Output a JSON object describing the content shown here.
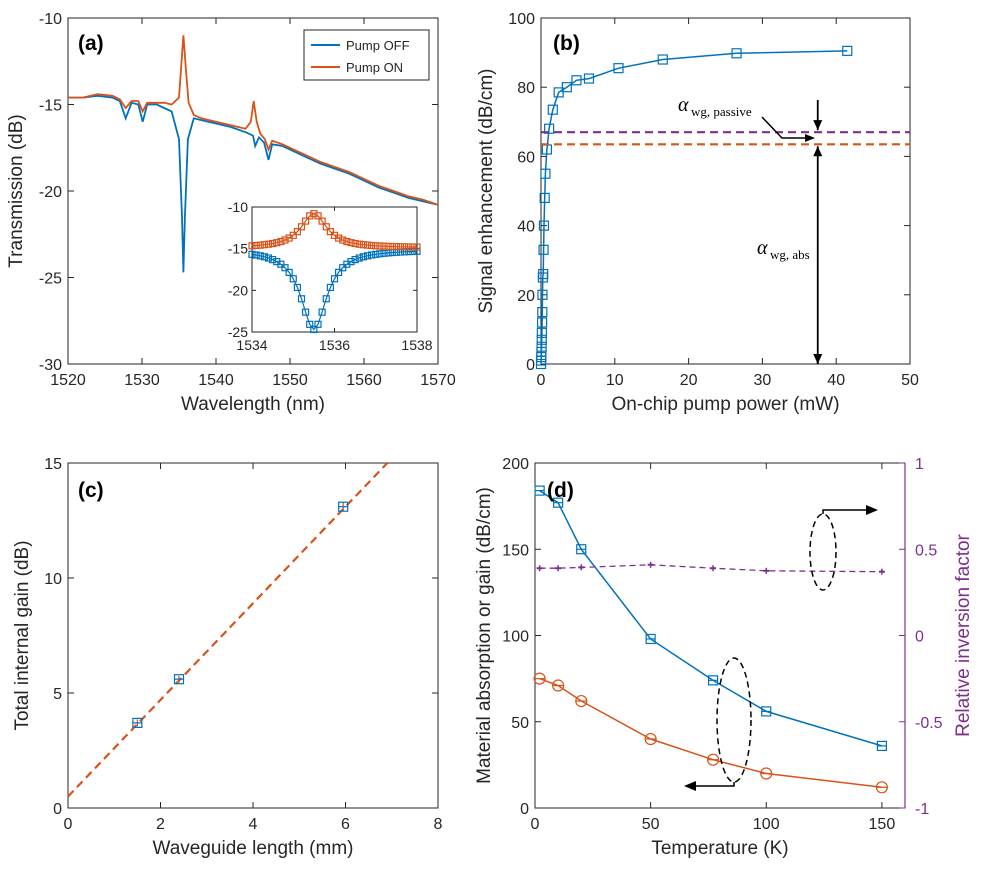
{
  "colors": {
    "blue": "#0072BD",
    "orange": "#D95319",
    "purple": "#7E2F8E",
    "black": "#000000"
  },
  "chart_data": [
    {
      "id": "a",
      "panel_label": "(a)",
      "type": "line",
      "xlabel": "Wavelength (nm)",
      "ylabel": "Transmission (dB)",
      "xlim": [
        1520,
        1570
      ],
      "ylim": [
        -30,
        -10
      ],
      "xticks": [
        1520,
        1530,
        1540,
        1550,
        1560,
        1570
      ],
      "yticks": [
        -30,
        -25,
        -20,
        -15,
        -10
      ],
      "legend": {
        "position": "top-right",
        "entries": [
          "Pump OFF",
          "Pump ON"
        ]
      },
      "series": [
        {
          "name": "Pump OFF",
          "color": "blue",
          "points": [
            [
              1520,
              -14.6
            ],
            [
              1522,
              -14.6
            ],
            [
              1524,
              -14.5
            ],
            [
              1526,
              -14.6
            ],
            [
              1527,
              -14.8
            ],
            [
              1527.8,
              -15.8
            ],
            [
              1528.6,
              -14.9
            ],
            [
              1529.5,
              -15
            ],
            [
              1530.1,
              -16.0
            ],
            [
              1530.7,
              -15.0
            ],
            [
              1532,
              -15.0
            ],
            [
              1533,
              -15.2
            ],
            [
              1534,
              -15.4
            ],
            [
              1535,
              -17.0
            ],
            [
              1535.4,
              -21.5
            ],
            [
              1535.6,
              -24.7
            ],
            [
              1535.8,
              -21.5
            ],
            [
              1536.2,
              -17.0
            ],
            [
              1537,
              -15.8
            ],
            [
              1538,
              -15.9
            ],
            [
              1540,
              -16.1
            ],
            [
              1542,
              -16.3
            ],
            [
              1544,
              -16.6
            ],
            [
              1545,
              -16.8
            ],
            [
              1545.3,
              -17.4
            ],
            [
              1545.8,
              -16.9
            ],
            [
              1546.5,
              -17.2
            ],
            [
              1547.1,
              -18.2
            ],
            [
              1547.6,
              -17.3
            ],
            [
              1549,
              -17.4
            ],
            [
              1550,
              -17.6
            ],
            [
              1552,
              -18.0
            ],
            [
              1554,
              -18.4
            ],
            [
              1556,
              -18.7
            ],
            [
              1558,
              -19.0
            ],
            [
              1560,
              -19.4
            ],
            [
              1562,
              -19.8
            ],
            [
              1564,
              -20.1
            ],
            [
              1566,
              -20.4
            ],
            [
              1568,
              -20.6
            ],
            [
              1570,
              -20.8
            ]
          ]
        },
        {
          "name": "Pump ON",
          "color": "orange",
          "points": [
            [
              1520,
              -14.6
            ],
            [
              1522,
              -14.6
            ],
            [
              1524,
              -14.4
            ],
            [
              1526,
              -14.5
            ],
            [
              1527,
              -14.7
            ],
            [
              1527.8,
              -15.2
            ],
            [
              1528.6,
              -14.8
            ],
            [
              1529.5,
              -14.8
            ],
            [
              1530.1,
              -15.4
            ],
            [
              1530.7,
              -14.9
            ],
            [
              1532,
              -14.9
            ],
            [
              1533,
              -14.9
            ],
            [
              1534,
              -15.0
            ],
            [
              1535,
              -14.6
            ],
            [
              1535.3,
              -12.8
            ],
            [
              1535.6,
              -11.0
            ],
            [
              1535.9,
              -12.8
            ],
            [
              1536.3,
              -14.9
            ],
            [
              1537,
              -15.6
            ],
            [
              1538,
              -15.8
            ],
            [
              1540,
              -16.0
            ],
            [
              1542,
              -16.2
            ],
            [
              1544,
              -16.4
            ],
            [
              1544.7,
              -16.0
            ],
            [
              1545.1,
              -14.8
            ],
            [
              1545.5,
              -16.0
            ],
            [
              1546,
              -16.7
            ],
            [
              1546.6,
              -17.0
            ],
            [
              1547.1,
              -17.6
            ],
            [
              1547.6,
              -17.1
            ],
            [
              1549,
              -17.3
            ],
            [
              1550,
              -17.5
            ],
            [
              1552,
              -17.9
            ],
            [
              1554,
              -18.3
            ],
            [
              1556,
              -18.6
            ],
            [
              1558,
              -18.9
            ],
            [
              1560,
              -19.3
            ],
            [
              1562,
              -19.7
            ],
            [
              1564,
              -20.0
            ],
            [
              1566,
              -20.3
            ],
            [
              1568,
              -20.5
            ],
            [
              1570,
              -20.8
            ]
          ]
        }
      ],
      "inset": {
        "xlim": [
          1534,
          1538
        ],
        "ylim": [
          -25,
          -10
        ],
        "xticks": [
          1534,
          1536,
          1538
        ],
        "yticks": [
          -25,
          -20,
          -15,
          -10
        ],
        "center": 1535.5
      }
    },
    {
      "id": "b",
      "panel_label": "(b)",
      "type": "line",
      "xlabel": "On-chip pump power (mW)",
      "ylabel": "Signal enhancement (dB/cm)",
      "xlim": [
        0,
        50
      ],
      "ylim": [
        0,
        100
      ],
      "xticks": [
        0,
        10,
        20,
        30,
        40,
        50
      ],
      "yticks": [
        0,
        20,
        40,
        60,
        80,
        100
      ],
      "series": [
        {
          "name": "Signal enhancement",
          "color": "blue",
          "marker": "square",
          "x": [
            0,
            0.02,
            0.04,
            0.06,
            0.08,
            0.1,
            0.12,
            0.15,
            0.18,
            0.2,
            0.25,
            0.3,
            0.35,
            0.4,
            0.5,
            0.6,
            0.8,
            1.1,
            1.6,
            2.4,
            3.5,
            4.8,
            6.5,
            10.5,
            16.5,
            26.5,
            41.5
          ],
          "y": [
            0,
            1,
            2,
            3.5,
            5,
            7,
            9,
            12,
            15,
            20,
            25,
            26,
            33,
            40,
            48,
            55,
            62,
            68,
            73.5,
            78.5,
            80,
            82,
            82.5,
            85.5,
            88,
            89.8,
            90.5
          ]
        }
      ],
      "reference_lines": [
        {
          "name": "passive",
          "value": 67,
          "color": "purple"
        },
        {
          "name": "absorption",
          "value": 63.5,
          "color": "orange"
        }
      ],
      "annotations": {
        "alpha_sym": "α",
        "passive_sub": "wg, passive",
        "abs_sub": "wg, abs",
        "arrow_x": 37.5
      }
    },
    {
      "id": "c",
      "panel_label": "(c)",
      "type": "scatter",
      "xlabel": "Waveguide length (mm)",
      "ylabel": "Total internal gain (dB)",
      "xlim": [
        0,
        8
      ],
      "ylim": [
        0,
        15
      ],
      "xticks": [
        0,
        2,
        4,
        6,
        8
      ],
      "yticks": [
        0,
        5,
        10,
        15
      ],
      "points": {
        "x": [
          1.5,
          2.4,
          5.95
        ],
        "y": [
          3.7,
          5.6,
          13.1
        ],
        "err": [
          0.15,
          0.15,
          0.2
        ]
      },
      "fit": {
        "slope": 2.1,
        "intercept": 0.5,
        "color": "orange"
      }
    },
    {
      "id": "d",
      "panel_label": "(d)",
      "type": "line",
      "xlabel": "Temperature (K)",
      "ylabel": "Material absorption or gain (dB/cm)",
      "y2label": "Relative inversion factor",
      "xlim": [
        0,
        160
      ],
      "ylim": [
        0,
        200
      ],
      "y2lim": [
        -1,
        1
      ],
      "xticks": [
        0,
        50,
        100,
        150
      ],
      "yticks": [
        0,
        50,
        100,
        150,
        200
      ],
      "y2ticks": [
        -1,
        -0.5,
        0,
        0.5,
        1
      ],
      "series": [
        {
          "name": "Absorption",
          "color": "blue",
          "marker": "square",
          "x": [
            2,
            10,
            20,
            50,
            77,
            100,
            150
          ],
          "y": [
            184,
            177,
            150,
            98,
            74,
            56,
            36
          ]
        },
        {
          "name": "Gain",
          "color": "orange",
          "marker": "circle",
          "x": [
            2,
            10,
            20,
            50,
            77,
            100,
            150
          ],
          "y": [
            75,
            71,
            62,
            40,
            28,
            20,
            12
          ]
        },
        {
          "name": "Inversion factor",
          "color": "purple",
          "axis": "right",
          "dashed": true,
          "x": [
            2,
            10,
            20,
            50,
            77,
            100,
            150
          ],
          "y": [
            0.39,
            0.39,
            0.395,
            0.41,
            0.39,
            0.375,
            0.37
          ]
        }
      ]
    }
  ]
}
